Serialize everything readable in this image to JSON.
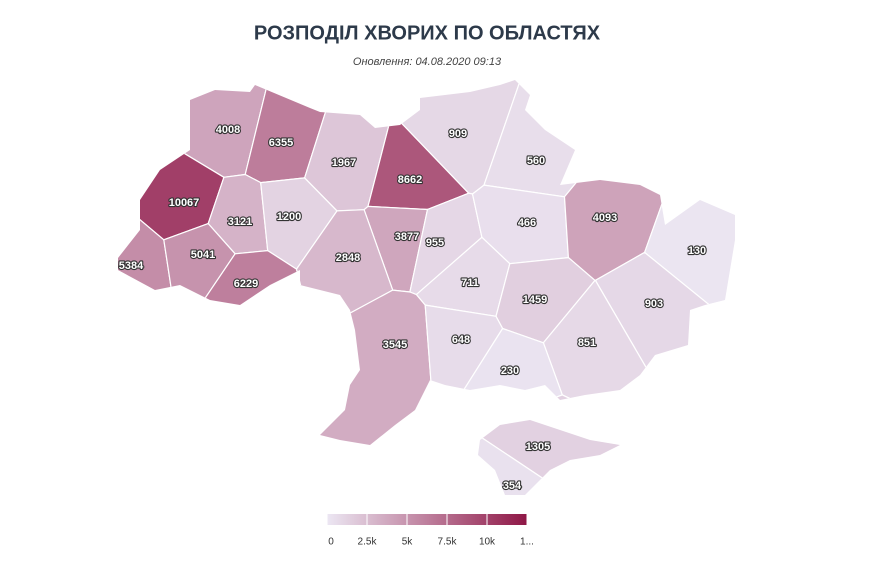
{
  "chart_data": {
    "type": "map",
    "title": "РОЗПОДІЛ ХВОРИХ ПО ОБЛАСТЯХ",
    "subtitle": "Оновлення: 04.08.2020 09:13",
    "values": [
      4008,
      6355,
      1967,
      8662,
      909,
      560,
      10067,
      3121,
      1200,
      3877,
      955,
      466,
      4093,
      130,
      5384,
      5041,
      6229,
      2848,
      711,
      1459,
      903,
      3545,
      648,
      851,
      230,
      1305,
      354
    ],
    "color_scale": {
      "lim": [
        0,
        12500
      ],
      "colors": [
        "#ece7f3",
        "#8f1746"
      ],
      "ticks": [
        0,
        {
          "value": 2500,
          "label": "2.5k"
        },
        {
          "value": 5000,
          "label": "5k"
        },
        {
          "value": 7500,
          "label": "7.5k"
        },
        {
          "value": 10000,
          "label": "10k"
        },
        {
          "value": 12500,
          "label": "1..."
        }
      ]
    }
  }
}
